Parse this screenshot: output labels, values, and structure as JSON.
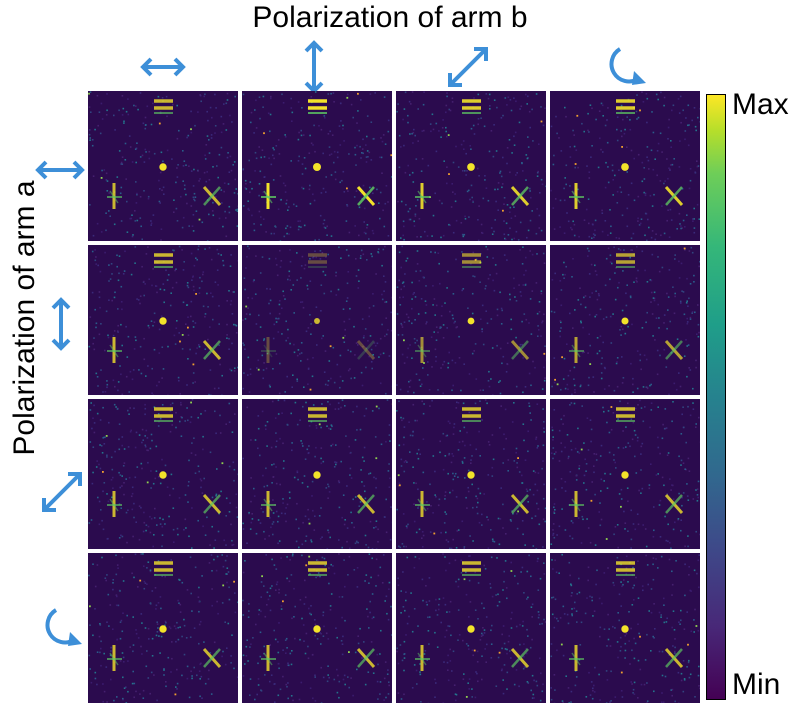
{
  "title_top": "Polarization of arm b",
  "title_left": "Polarization of arm a",
  "colorbar": {
    "max_label": "Max",
    "min_label": "Min"
  },
  "icon_color": "#3d8fd8",
  "column_polarizations": [
    "horizontal-arrow-icon",
    "vertical-arrow-icon",
    "diagonal-arrow-icon",
    "circular-arrow-icon"
  ],
  "row_polarizations": [
    "horizontal-arrow-icon",
    "vertical-arrow-icon",
    "diagonal-arrow-icon",
    "circular-arrow-icon"
  ],
  "panel_intensities": [
    [
      0.8,
      1.0,
      0.9,
      0.9
    ],
    [
      0.8,
      0.3,
      0.6,
      0.7
    ],
    [
      0.8,
      0.8,
      0.8,
      0.8
    ],
    [
      0.8,
      0.8,
      0.8,
      0.8
    ]
  ]
}
